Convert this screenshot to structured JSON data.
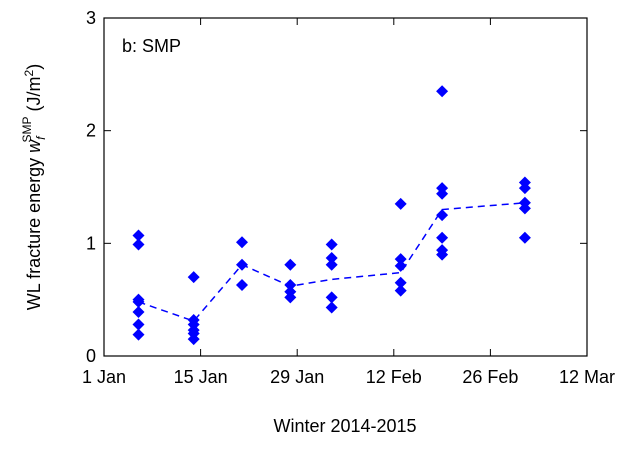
{
  "chart_data": {
    "type": "scatter",
    "annotation": "b: SMP",
    "xlabel": "Winter 2014-2015",
    "ylabel": {
      "text": "WL fracture energy ",
      "symbol": "w",
      "sub": "f",
      "sup": "SMP",
      "unit_pre": " (J/m",
      "unit_sup": "2",
      "unit_post": ")"
    },
    "xlim": [
      "1 Jan",
      "12 Mar"
    ],
    "xticks": [
      "1 Jan",
      "15 Jan",
      "29 Jan",
      "12 Feb",
      "26 Feb",
      "12 Mar"
    ],
    "ylim": [
      0,
      3
    ],
    "yticks": [
      0,
      1,
      2,
      3
    ],
    "series": [
      {
        "style": "markers",
        "color": "#0000ff",
        "x": [
          "6 Jan",
          "6 Jan",
          "6 Jan",
          "6 Jan",
          "6 Jan",
          "6 Jan",
          "6 Jan",
          "14 Jan",
          "14 Jan",
          "14 Jan",
          "14 Jan",
          "14 Jan",
          "14 Jan",
          "21 Jan",
          "21 Jan",
          "21 Jan",
          "28 Jan",
          "28 Jan",
          "28 Jan",
          "28 Jan",
          "3 Feb",
          "3 Feb",
          "3 Feb",
          "3 Feb",
          "3 Feb",
          "13 Feb",
          "13 Feb",
          "13 Feb",
          "13 Feb",
          "13 Feb",
          "19 Feb",
          "19 Feb",
          "19 Feb",
          "19 Feb",
          "19 Feb",
          "19 Feb",
          "19 Feb",
          "3 Mar",
          "3 Mar",
          "3 Mar",
          "3 Mar",
          "3 Mar"
        ],
        "values": [
          1.07,
          0.99,
          0.5,
          0.48,
          0.39,
          0.28,
          0.19,
          0.7,
          0.32,
          0.28,
          0.23,
          0.2,
          0.15,
          1.01,
          0.81,
          0.63,
          0.81,
          0.63,
          0.57,
          0.52,
          0.99,
          0.87,
          0.81,
          0.52,
          0.43,
          1.35,
          0.86,
          0.8,
          0.65,
          0.58,
          2.35,
          1.49,
          1.44,
          1.25,
          1.05,
          0.94,
          0.9,
          1.54,
          1.49,
          1.36,
          1.31,
          1.05
        ]
      },
      {
        "style": "dashed-line",
        "color": "#0000ff",
        "x": [
          "6 Jan",
          "14 Jan",
          "21 Jan",
          "28 Jan",
          "3 Feb",
          "13 Feb",
          "19 Feb",
          "3 Mar"
        ],
        "values": [
          0.48,
          0.31,
          0.81,
          0.62,
          0.68,
          0.74,
          1.3,
          1.36
        ]
      }
    ]
  }
}
